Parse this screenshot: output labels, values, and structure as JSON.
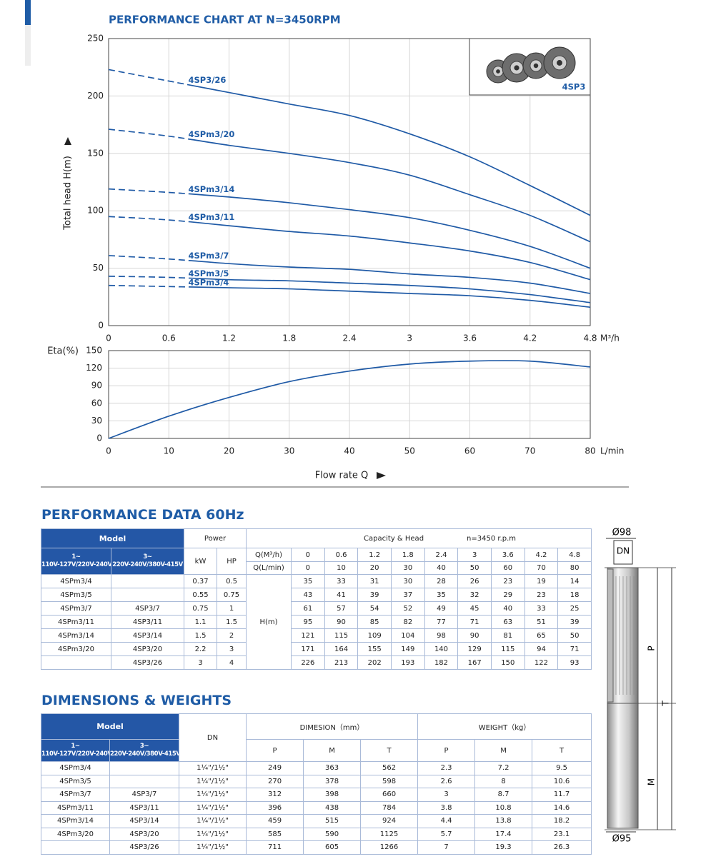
{
  "chart_data": [
    {
      "type": "line",
      "title": "PERFORMANCE CHART AT N=3450RPM",
      "ylabel": "Total head H(m)",
      "xunit": "M³/h",
      "x": [
        0,
        0.6,
        1.2,
        1.8,
        2.4,
        3,
        3.6,
        4.2,
        4.8
      ],
      "xlim": [
        0,
        4.8
      ],
      "xticks": [
        0,
        0.6,
        1.2,
        1.8,
        2.4,
        3,
        3.6,
        4.2,
        4.8
      ],
      "ylim": [
        0,
        250
      ],
      "yticks": [
        0,
        50,
        100,
        150,
        200,
        250
      ],
      "grid": true,
      "dashed_below_x": 0.78,
      "inset_label": "4SP3",
      "series": [
        {
          "name": "4SP3/26",
          "color": "#1f5aa6",
          "values": [
            223,
            213,
            203,
            193,
            183,
            167,
            147,
            122,
            96
          ]
        },
        {
          "name": "4SPm3/20",
          "color": "#1f5aa6",
          "values": [
            171,
            165,
            157,
            150,
            142,
            131,
            114,
            96,
            73
          ]
        },
        {
          "name": "4SPm3/14",
          "color": "#1f5aa6",
          "values": [
            119,
            116,
            112,
            107,
            101,
            94,
            83,
            69,
            50
          ]
        },
        {
          "name": "4SPm3/11",
          "color": "#1f5aa6",
          "values": [
            95,
            92,
            87,
            82,
            78,
            72,
            65,
            55,
            40
          ]
        },
        {
          "name": "4SPm3/7",
          "color": "#1f5aa6",
          "values": [
            61,
            58,
            54,
            51,
            49,
            45,
            42,
            37,
            28
          ]
        },
        {
          "name": "4SPm3/5",
          "color": "#1f5aa6",
          "values": [
            43,
            42,
            40,
            39,
            37,
            35,
            32,
            27,
            20
          ]
        },
        {
          "name": "4SPm3/4",
          "color": "#1f5aa6",
          "values": [
            35,
            34,
            33,
            32,
            30,
            28,
            26,
            22,
            16
          ]
        }
      ]
    },
    {
      "type": "line",
      "ylabel": "Eta(%)",
      "xlabel": "Flow rate Q",
      "xunit": "L/min",
      "x": [
        0,
        10,
        20,
        30,
        40,
        50,
        60,
        70,
        80
      ],
      "xlim": [
        0,
        80
      ],
      "xticks": [
        0,
        10,
        20,
        30,
        40,
        50,
        60,
        70,
        80
      ],
      "ylim": [
        0,
        150
      ],
      "yticks": [
        0,
        30,
        60,
        90,
        120,
        150
      ],
      "grid": true,
      "series": [
        {
          "color": "#1f5aa6",
          "values": [
            0,
            38,
            70,
            97,
            115,
            127,
            132,
            132,
            122
          ]
        }
      ]
    }
  ],
  "performance_data": {
    "title": "PERFORMANCE DATA 60Hz",
    "header": {
      "model": "Model",
      "power": "Power",
      "capacity": "Capacity & Head",
      "speed": "n=3450 r.p.m",
      "model_1ph": {
        "phase": "1~",
        "voltage": "110V-127V/220V-240V"
      },
      "model_3ph": {
        "phase": "3~",
        "voltage": "220V-240V/380V-415V"
      },
      "kw": "kW",
      "hp": "HP",
      "q_m3h_label": "Q(M³/h)",
      "q_m3h": [
        0,
        0.6,
        1.2,
        1.8,
        2.4,
        3,
        3.6,
        4.2,
        4.8
      ],
      "q_lmin_label": "Q(L/min)",
      "q_lmin": [
        0,
        10,
        20,
        30,
        40,
        50,
        60,
        70,
        80
      ],
      "head_label": "H(m)"
    },
    "rows": [
      {
        "model_1ph": "4SPm3/4",
        "model_3ph": null,
        "kw": 0.37,
        "hp": 0.5,
        "head": [
          35,
          33,
          31,
          30,
          28,
          26,
          23,
          19,
          14
        ]
      },
      {
        "model_1ph": "4SPm3/5",
        "model_3ph": null,
        "kw": 0.55,
        "hp": 0.75,
        "head": [
          43,
          41,
          39,
          37,
          35,
          32,
          29,
          23,
          18
        ]
      },
      {
        "model_1ph": "4SPm3/7",
        "model_3ph": "4SP3/7",
        "kw": 0.75,
        "hp": 1,
        "head": [
          61,
          57,
          54,
          52,
          49,
          45,
          40,
          33,
          25
        ]
      },
      {
        "model_1ph": "4SPm3/11",
        "model_3ph": "4SP3/11",
        "kw": 1.1,
        "hp": 1.5,
        "head": [
          95,
          90,
          85,
          82,
          77,
          71,
          63,
          51,
          39
        ]
      },
      {
        "model_1ph": "4SPm3/14",
        "model_3ph": "4SP3/14",
        "kw": 1.5,
        "hp": 2,
        "head": [
          121,
          115,
          109,
          104,
          98,
          90,
          81,
          65,
          50
        ]
      },
      {
        "model_1ph": "4SPm3/20",
        "model_3ph": "4SP3/20",
        "kw": 2.2,
        "hp": 3,
        "head": [
          171,
          164,
          155,
          149,
          140,
          129,
          115,
          94,
          71
        ]
      },
      {
        "model_1ph": null,
        "model_3ph": "4SP3/26",
        "kw": 3,
        "hp": 4,
        "head": [
          226,
          213,
          202,
          193,
          182,
          167,
          150,
          122,
          93
        ]
      }
    ]
  },
  "dimensions": {
    "title": "DIMENSIONS & WEIGHTS",
    "header": {
      "model": "Model",
      "model_1ph": {
        "phase": "1~",
        "voltage": "110V-127V/220V-240V"
      },
      "model_3ph": {
        "phase": "3~",
        "voltage": "220V-240V/380V-415V"
      },
      "dn": "DN",
      "dimension": "DIMESION（mm）",
      "weight": "WEIGHT（kg）",
      "dim_cols": [
        "P",
        "M",
        "T"
      ],
      "weight_cols": [
        "P",
        "M",
        "T"
      ]
    },
    "rows": [
      {
        "model_1ph": "4SPm3/4",
        "model_3ph": null,
        "dn": "1¼\"/1½\"",
        "dim": [
          249,
          363,
          562
        ],
        "weight": [
          2.3,
          7.2,
          9.5
        ]
      },
      {
        "model_1ph": "4SPm3/5",
        "model_3ph": null,
        "dn": "1¼\"/1½\"",
        "dim": [
          270,
          378,
          598
        ],
        "weight": [
          2.6,
          8,
          10.6
        ]
      },
      {
        "model_1ph": "4SPm3/7",
        "model_3ph": "4SP3/7",
        "dn": "1¼\"/1½\"",
        "dim": [
          312,
          398,
          660
        ],
        "weight": [
          3,
          8.7,
          11.7
        ]
      },
      {
        "model_1ph": "4SPm3/11",
        "model_3ph": "4SP3/11",
        "dn": "1¼\"/1½\"",
        "dim": [
          396,
          438,
          784
        ],
        "weight": [
          3.8,
          10.8,
          14.6
        ]
      },
      {
        "model_1ph": "4SPm3/14",
        "model_3ph": "4SP3/14",
        "dn": "1¼\"/1½\"",
        "dim": [
          459,
          515,
          924
        ],
        "weight": [
          4.4,
          13.8,
          18.2
        ]
      },
      {
        "model_1ph": "4SPm3/20",
        "model_3ph": "4SP3/20",
        "dn": "1¼\"/1½\"",
        "dim": [
          585,
          590,
          1125
        ],
        "weight": [
          5.7,
          17.4,
          23.1
        ]
      },
      {
        "model_1ph": null,
        "model_3ph": "4SP3/26",
        "dn": "1¼\"/1½\"",
        "dim": [
          711,
          605,
          1266
        ],
        "weight": [
          7,
          19.3,
          26.3
        ]
      }
    ]
  },
  "drawing": {
    "top_diameter": "Ø98",
    "dn": "DN",
    "p": "P",
    "t": "T",
    "m": "M",
    "bottom_diameter": "Ø95"
  }
}
